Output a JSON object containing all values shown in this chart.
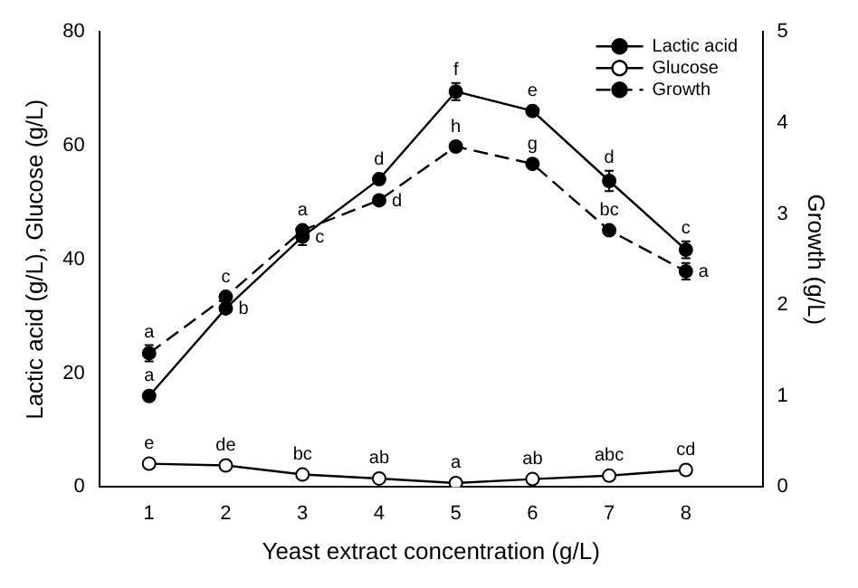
{
  "chart_data": {
    "type": "line",
    "xlabel": "Yeast extract concentration (g/L)",
    "ylabel": "Lactic acid (g/L), Glucose (g/L)",
    "y2label": "Growth (g/L)",
    "x": [
      1,
      2,
      3,
      4,
      5,
      6,
      7,
      8
    ],
    "xlim": [
      0.35,
      9
    ],
    "xticks": [
      1,
      2,
      3,
      4,
      5,
      6,
      7,
      8
    ],
    "ylim": [
      0,
      80
    ],
    "yticks": [
      0,
      20,
      40,
      60,
      80
    ],
    "y2lim": [
      0,
      5
    ],
    "y2ticks": [
      0,
      1,
      2,
      3,
      4,
      5
    ],
    "grid": false,
    "legend": "top right",
    "marker": "circle",
    "series": [
      {
        "name": "Lactic acid",
        "color": "#000000",
        "line_style": "solid",
        "values": [
          16,
          31.4,
          44,
          54.1,
          69.5,
          66.1,
          53.8,
          41.7
        ],
        "errors": [
          null,
          null,
          1.5,
          null,
          1.5,
          null,
          1.8,
          1.5
        ],
        "value_labels": [
          "a",
          "b",
          "c",
          "d",
          "f",
          "e",
          "d",
          "c"
        ]
      },
      {
        "name": "Glucose",
        "color": "#ffffff",
        "line_style": "solid",
        "values": [
          4.1,
          3.8,
          2.2,
          1.5,
          0.7,
          1.4,
          2,
          3
        ],
        "value_labels": [
          "e",
          "de",
          "bc",
          "ab",
          "a",
          "ab",
          "abc",
          "cd"
        ]
      },
      {
        "name": "Growth",
        "color": "#000000",
        "line_style": "dashed",
        "axis": "y2",
        "values": [
          1.47,
          2.09,
          2.82,
          3.15,
          3.74,
          3.55,
          2.82,
          2.37
        ],
        "errors": [
          0.09,
          null,
          null,
          null,
          null,
          null,
          null,
          0.09
        ],
        "value_labels": [
          "a",
          "c",
          "a",
          "d",
          "h",
          "g",
          "bc",
          "a"
        ]
      }
    ]
  }
}
